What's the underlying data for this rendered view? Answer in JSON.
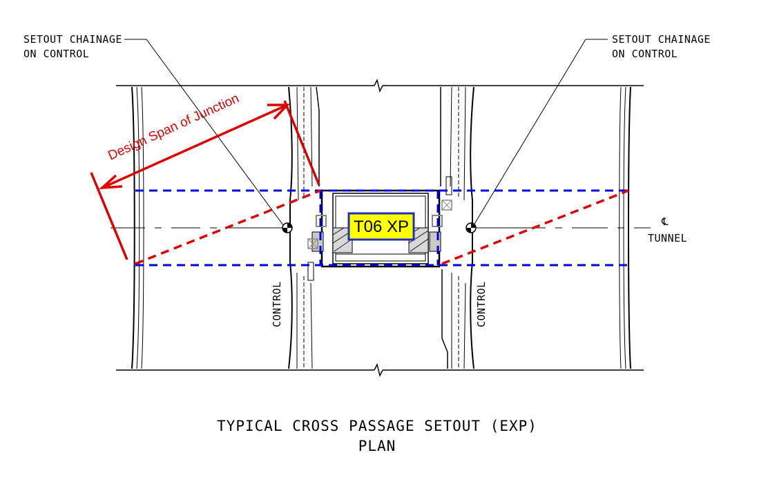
{
  "drawing": {
    "title_line1": "TYPICAL CROSS PASSAGE SETOUT (EXP)",
    "title_line2": "PLAN"
  },
  "callouts": {
    "left": {
      "line1": "SETOUT CHAINAGE",
      "line2": "ON CONTROL"
    },
    "right": {
      "line1": "SETOUT CHAINAGE",
      "line2": "ON CONTROL"
    }
  },
  "control_labels": {
    "left": "CONTROL",
    "right": "CONTROL"
  },
  "centerline": {
    "symbol": "℄",
    "label": "TUNNEL"
  },
  "annotation": {
    "text": "Design Span of Junction",
    "color": "#e00000"
  },
  "tag": {
    "text": "T06 XP",
    "fill": "#ffff00",
    "border": "#1f2fbf"
  },
  "colors": {
    "markup_blue": "#0000dd",
    "markup_red": "#e00000",
    "linework": "#000000"
  }
}
